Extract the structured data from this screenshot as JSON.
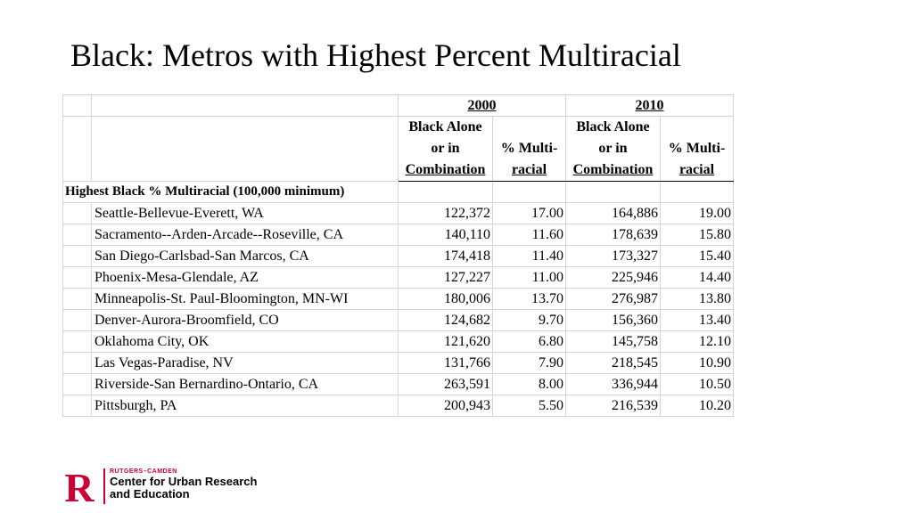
{
  "title": "Black: Metros with Highest Percent Multiracial",
  "table": {
    "years": [
      "2000",
      "2010"
    ],
    "col_alone": [
      "Black Alone",
      "or in",
      "Combination"
    ],
    "col_pct": [
      "% Multi-",
      "racial"
    ],
    "section_label": "Highest Black % Multiracial (100,000 minimum)",
    "rows": [
      {
        "name": "Seattle-Bellevue-Everett, WA",
        "pop2000": "122,372",
        "pct2000": "17.00",
        "pop2010": "164,886",
        "pct2010": "19.00"
      },
      {
        "name": "Sacramento--Arden-Arcade--Roseville, CA",
        "pop2000": "140,110",
        "pct2000": "11.60",
        "pop2010": "178,639",
        "pct2010": "15.80"
      },
      {
        "name": "San Diego-Carlsbad-San Marcos, CA",
        "pop2000": "174,418",
        "pct2000": "11.40",
        "pop2010": "173,327",
        "pct2010": "15.40"
      },
      {
        "name": "Phoenix-Mesa-Glendale, AZ",
        "pop2000": "127,227",
        "pct2000": "11.00",
        "pop2010": "225,946",
        "pct2010": "14.40"
      },
      {
        "name": "Minneapolis-St. Paul-Bloomington, MN-WI",
        "pop2000": "180,006",
        "pct2000": "13.70",
        "pop2010": "276,987",
        "pct2010": "13.80"
      },
      {
        "name": "Denver-Aurora-Broomfield, CO",
        "pop2000": "124,682",
        "pct2000": "9.70",
        "pop2010": "156,360",
        "pct2010": "13.40"
      },
      {
        "name": "Oklahoma City, OK",
        "pop2000": "121,620",
        "pct2000": "6.80",
        "pop2010": "145,758",
        "pct2010": "12.10"
      },
      {
        "name": "Las Vegas-Paradise, NV",
        "pop2000": "131,766",
        "pct2000": "7.90",
        "pop2010": "218,545",
        "pct2010": "10.90"
      },
      {
        "name": "Riverside-San Bernardino-Ontario, CA",
        "pop2000": "263,591",
        "pct2000": "8.00",
        "pop2010": "336,944",
        "pct2010": "10.50"
      },
      {
        "name": "Pittsburgh, PA",
        "pop2000": "200,943",
        "pct2000": "5.50",
        "pop2010": "216,539",
        "pct2010": "10.20"
      }
    ]
  },
  "logo": {
    "letter": "R",
    "subtitle": "RUTGERS–CAMDEN",
    "line1": "Center for Urban Research",
    "line2": "and Education",
    "brand_color": "#cc0033"
  }
}
